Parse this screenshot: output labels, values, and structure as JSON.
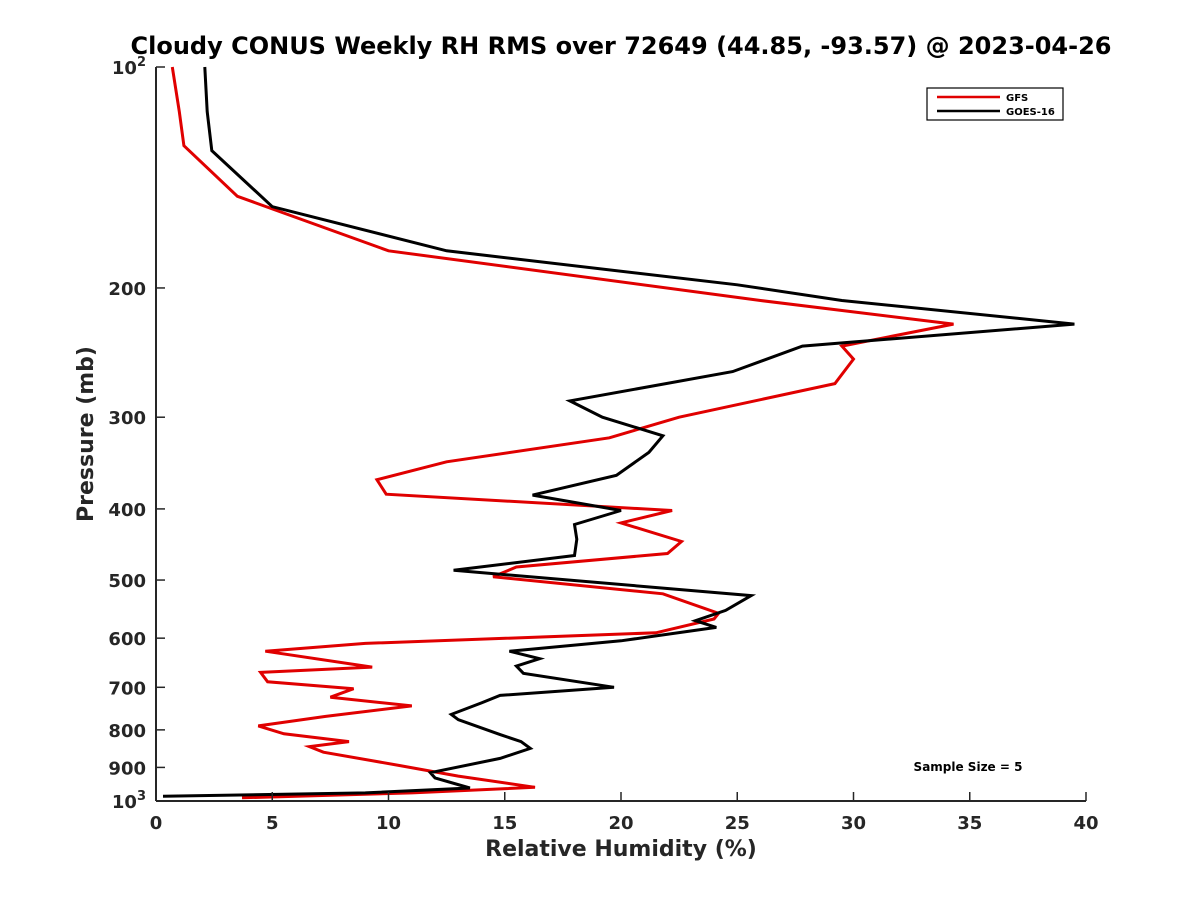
{
  "chart_data": {
    "type": "line",
    "title": "Cloudy CONUS Weekly RH RMS over 72649 (44.85, -93.57) @ 2023-04-26",
    "xlabel": "Relative Humidity (%)",
    "ylabel": "Pressure (mb)",
    "xlim": [
      0,
      40
    ],
    "ylim": [
      100,
      1000
    ],
    "y_scale": "log",
    "y_reversed": true,
    "x_ticks": [
      "0",
      "5",
      "10",
      "15",
      "20",
      "25",
      "30",
      "35",
      "40"
    ],
    "y_ticks": [
      {
        "value": 100,
        "base": "10",
        "exp": "2"
      },
      {
        "value": 200,
        "label": "200"
      },
      {
        "value": 300,
        "label": "300"
      },
      {
        "value": 400,
        "label": "400"
      },
      {
        "value": 500,
        "label": "500"
      },
      {
        "value": 600,
        "label": "600"
      },
      {
        "value": 700,
        "label": "700"
      },
      {
        "value": 800,
        "label": "800"
      },
      {
        "value": 900,
        "label": "900"
      },
      {
        "value": 1000,
        "base": "10",
        "exp": "3"
      }
    ],
    "legend_position": "top-right",
    "grid": false,
    "annotation": "Sample Size = 5",
    "series": [
      {
        "name": "GFS",
        "color": "#e00000",
        "points": [
          [
            0.7,
            100
          ],
          [
            1.0,
            115
          ],
          [
            1.2,
            128
          ],
          [
            3.5,
            150
          ],
          [
            10.0,
            178
          ],
          [
            26.0,
            208
          ],
          [
            34.3,
            224
          ],
          [
            29.5,
            240
          ],
          [
            30.0,
            250
          ],
          [
            29.2,
            270
          ],
          [
            22.5,
            300
          ],
          [
            19.5,
            320
          ],
          [
            12.5,
            345
          ],
          [
            9.5,
            365
          ],
          [
            9.9,
            382
          ],
          [
            22.2,
            402
          ],
          [
            20.0,
            418
          ],
          [
            22.6,
            443
          ],
          [
            22.0,
            460
          ],
          [
            15.5,
            480
          ],
          [
            14.5,
            495
          ],
          [
            21.8,
            522
          ],
          [
            24.2,
            555
          ],
          [
            24.0,
            565
          ],
          [
            21.5,
            590
          ],
          [
            9.0,
            610
          ],
          [
            4.7,
            625
          ],
          [
            9.3,
            657
          ],
          [
            4.5,
            668
          ],
          [
            4.8,
            688
          ],
          [
            8.5,
            703
          ],
          [
            7.5,
            722
          ],
          [
            11.0,
            742
          ],
          [
            7.3,
            767
          ],
          [
            4.4,
            790
          ],
          [
            5.5,
            810
          ],
          [
            8.3,
            830
          ],
          [
            6.6,
            843
          ],
          [
            7.2,
            858
          ],
          [
            10.5,
            895
          ],
          [
            13.0,
            925
          ],
          [
            16.3,
            958
          ],
          [
            11.0,
            975
          ],
          [
            3.7,
            990
          ]
        ]
      },
      {
        "name": "GOES-16",
        "color": "#000000",
        "points": [
          [
            2.1,
            100
          ],
          [
            2.2,
            115
          ],
          [
            2.4,
            130
          ],
          [
            5.0,
            155
          ],
          [
            12.5,
            178
          ],
          [
            25.0,
            198
          ],
          [
            29.5,
            208
          ],
          [
            39.5,
            224
          ],
          [
            27.8,
            240
          ],
          [
            24.8,
            260
          ],
          [
            17.8,
            285
          ],
          [
            19.2,
            300
          ],
          [
            21.8,
            318
          ],
          [
            21.2,
            335
          ],
          [
            19.8,
            360
          ],
          [
            16.2,
            383
          ],
          [
            20.0,
            402
          ],
          [
            18.0,
            420
          ],
          [
            18.1,
            440
          ],
          [
            18.0,
            463
          ],
          [
            12.8,
            485
          ],
          [
            25.6,
            525
          ],
          [
            24.5,
            550
          ],
          [
            23.2,
            568
          ],
          [
            24.1,
            580
          ],
          [
            20.0,
            605
          ],
          [
            15.2,
            625
          ],
          [
            16.5,
            640
          ],
          [
            15.5,
            655
          ],
          [
            15.8,
            670
          ],
          [
            19.7,
            700
          ],
          [
            14.8,
            718
          ],
          [
            14.0,
            735
          ],
          [
            12.7,
            762
          ],
          [
            13.0,
            775
          ],
          [
            14.8,
            812
          ],
          [
            15.7,
            830
          ],
          [
            16.1,
            848
          ],
          [
            14.8,
            875
          ],
          [
            11.8,
            915
          ],
          [
            12.0,
            930
          ],
          [
            13.5,
            960
          ],
          [
            9.0,
            975
          ],
          [
            0.3,
            985
          ]
        ]
      }
    ]
  }
}
